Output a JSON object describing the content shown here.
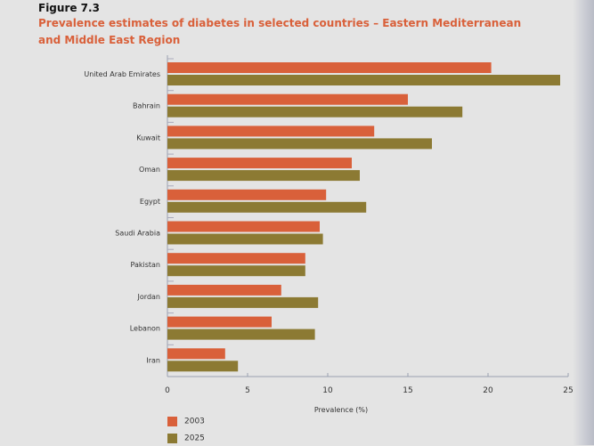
{
  "figure_label": "Figure 7.3",
  "chart_data": {
    "type": "bar",
    "orientation": "horizontal",
    "title": "Prevalence estimates of diabetes in selected countries – Eastern Mediterranean and Middle East Region",
    "xlabel": "Prevalence (%)",
    "ylabel": "",
    "xlim": [
      0,
      25
    ],
    "xticks": [
      0,
      5,
      10,
      15,
      20,
      25
    ],
    "categories": [
      "United Arab Emirates",
      "Bahrain",
      "Kuwait",
      "Oman",
      "Egypt",
      "Saudi Arabia",
      "Pakistan",
      "Jordan",
      "Lebanon",
      "Iran"
    ],
    "series": [
      {
        "name": "2003",
        "color": "#d9603a",
        "values": [
          20.2,
          15.0,
          12.9,
          11.5,
          9.9,
          9.5,
          8.6,
          7.1,
          6.5,
          3.6
        ]
      },
      {
        "name": "2025",
        "color": "#8c7a33",
        "values": [
          24.5,
          18.4,
          16.5,
          12.0,
          12.4,
          9.7,
          8.6,
          9.4,
          9.2,
          4.4
        ]
      }
    ],
    "grid": false,
    "legend_position": "bottom-left"
  }
}
